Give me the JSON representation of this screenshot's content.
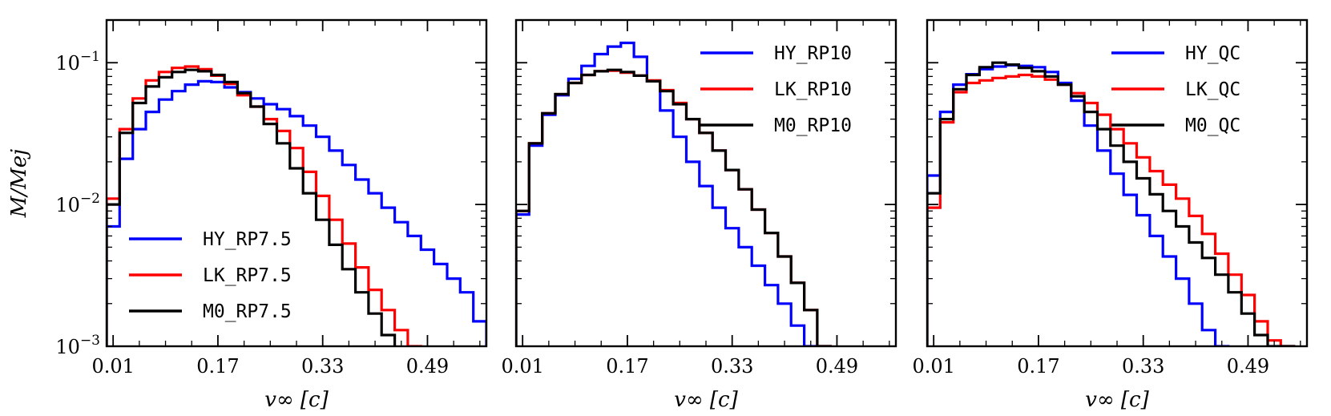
{
  "chart_data": [
    {
      "type": "line",
      "drawstyle": "step",
      "xlabel": "v∞ [c]",
      "ylabel": "M/Mej",
      "yscale": "log",
      "ylim": [
        0.001,
        0.2
      ],
      "xlim": [
        0.0,
        0.58
      ],
      "xticks": [
        "0.01",
        "0.17",
        "0.33",
        "0.49"
      ],
      "yticks": [
        "10^-1",
        "10^-2",
        "10^-3"
      ],
      "legend_loc": "lower-left",
      "bin_edges": [
        0.0,
        0.02,
        0.04,
        0.06,
        0.08,
        0.1,
        0.12,
        0.14,
        0.16,
        0.18,
        0.2,
        0.22,
        0.24,
        0.26,
        0.28,
        0.3,
        0.32,
        0.34,
        0.36,
        0.38,
        0.4,
        0.42,
        0.44,
        0.46,
        0.48,
        0.5,
        0.52,
        0.54,
        0.56,
        0.58
      ],
      "series": [
        {
          "name": "HY_RP7.5",
          "color": "#0000ff",
          "values": [
            0.007,
            0.021,
            0.034,
            0.045,
            0.055,
            0.063,
            0.07,
            0.074,
            0.073,
            0.067,
            0.062,
            0.056,
            0.051,
            0.047,
            0.042,
            0.036,
            0.03,
            0.024,
            0.019,
            0.015,
            0.012,
            0.0095,
            0.0075,
            0.006,
            0.0048,
            0.0038,
            0.003,
            0.0024,
            0.0015
          ]
        },
        {
          "name": "LK_RP7.5",
          "color": "#ff0000",
          "values": [
            0.011,
            0.034,
            0.056,
            0.075,
            0.086,
            0.092,
            0.094,
            0.09,
            0.081,
            0.071,
            0.059,
            0.049,
            0.04,
            0.033,
            0.025,
            0.017,
            0.0115,
            0.0078,
            0.0053,
            0.0036,
            0.0025,
            0.0018,
            0.0013,
            0.001
          ]
        },
        {
          "name": "M0_RP7.5",
          "color": "#000000",
          "values": [
            0.01,
            0.032,
            0.052,
            0.068,
            0.079,
            0.086,
            0.089,
            0.087,
            0.082,
            0.073,
            0.061,
            0.049,
            0.037,
            0.027,
            0.018,
            0.012,
            0.0078,
            0.0052,
            0.0035,
            0.0024,
            0.0017,
            0.0012
          ]
        }
      ]
    },
    {
      "type": "line",
      "drawstyle": "step",
      "xlabel": "v∞ [c]",
      "ylabel": "",
      "yscale": "log",
      "ylim": [
        0.001,
        0.2
      ],
      "xlim": [
        0.0,
        0.58
      ],
      "xticks": [
        "0.01",
        "0.17",
        "0.33",
        "0.49"
      ],
      "yticks": [],
      "legend_loc": "upper-right",
      "bin_edges": [
        0.0,
        0.02,
        0.04,
        0.06,
        0.08,
        0.1,
        0.12,
        0.14,
        0.16,
        0.18,
        0.2,
        0.22,
        0.24,
        0.26,
        0.28,
        0.3,
        0.32,
        0.34,
        0.36,
        0.38,
        0.4,
        0.42,
        0.44,
        0.46,
        0.48,
        0.5
      ],
      "series": [
        {
          "name": "HY_RP10",
          "color": "#0000ff",
          "values": [
            0.0085,
            0.026,
            0.043,
            0.059,
            0.077,
            0.095,
            0.115,
            0.13,
            0.138,
            0.11,
            0.074,
            0.046,
            0.03,
            0.02,
            0.0135,
            0.0095,
            0.0068,
            0.005,
            0.0037,
            0.0027,
            0.002,
            0.0014,
            0.001
          ]
        },
        {
          "name": "LK_RP10",
          "color": "#ff0000",
          "values": [
            0.009,
            0.027,
            0.044,
            0.06,
            0.072,
            0.082,
            0.087,
            0.088,
            0.085,
            0.081,
            0.075,
            0.064,
            0.052,
            0.04,
            0.032,
            0.024,
            0.0175,
            0.0128,
            0.0092,
            0.0063,
            0.0043,
            0.0028,
            0.0018,
            0.001
          ]
        },
        {
          "name": "M0_RP10",
          "color": "#000000",
          "values": [
            0.009,
            0.027,
            0.044,
            0.06,
            0.072,
            0.082,
            0.087,
            0.089,
            0.086,
            0.081,
            0.074,
            0.063,
            0.051,
            0.04,
            0.032,
            0.024,
            0.0175,
            0.0128,
            0.0092,
            0.0063,
            0.0043,
            0.0028,
            0.0018,
            0.001
          ]
        }
      ]
    },
    {
      "type": "line",
      "drawstyle": "step",
      "xlabel": "v∞ [c]",
      "ylabel": "",
      "yscale": "log",
      "ylim": [
        0.001,
        0.2
      ],
      "xlim": [
        0.0,
        0.58
      ],
      "xticks": [
        "0.01",
        "0.17",
        "0.33",
        "0.49"
      ],
      "yticks": [],
      "legend_loc": "upper-right",
      "bin_edges": [
        0.0,
        0.02,
        0.04,
        0.06,
        0.08,
        0.1,
        0.12,
        0.14,
        0.16,
        0.18,
        0.2,
        0.22,
        0.24,
        0.26,
        0.28,
        0.3,
        0.32,
        0.34,
        0.36,
        0.38,
        0.4,
        0.42,
        0.44,
        0.46,
        0.48,
        0.5,
        0.52,
        0.54,
        0.56
      ],
      "series": [
        {
          "name": "HY_QC",
          "color": "#0000ff",
          "values": [
            0.016,
            0.045,
            0.07,
            0.083,
            0.09,
            0.094,
            0.096,
            0.095,
            0.093,
            0.086,
            0.072,
            0.054,
            0.036,
            0.024,
            0.0165,
            0.0117,
            0.0084,
            0.006,
            0.0043,
            0.003,
            0.002,
            0.0013,
            0.001
          ]
        },
        {
          "name": "LK_QC",
          "color": "#ff0000",
          "values": [
            0.0095,
            0.038,
            0.062,
            0.072,
            0.075,
            0.078,
            0.08,
            0.082,
            0.08,
            0.076,
            0.07,
            0.061,
            0.052,
            0.043,
            0.034,
            0.027,
            0.0215,
            0.0172,
            0.0138,
            0.011,
            0.0083,
            0.0062,
            0.0045,
            0.0032,
            0.0023,
            0.0015,
            0.0011,
            0.001
          ]
        },
        {
          "name": "M0_QC",
          "color": "#000000",
          "values": [
            0.012,
            0.04,
            0.065,
            0.082,
            0.093,
            0.1,
            0.097,
            0.092,
            0.087,
            0.08,
            0.07,
            0.058,
            0.045,
            0.034,
            0.026,
            0.02,
            0.0153,
            0.0118,
            0.009,
            0.007,
            0.0054,
            0.0042,
            0.0032,
            0.0024,
            0.0017,
            0.0012,
            0.001,
            0.001
          ]
        }
      ]
    }
  ]
}
